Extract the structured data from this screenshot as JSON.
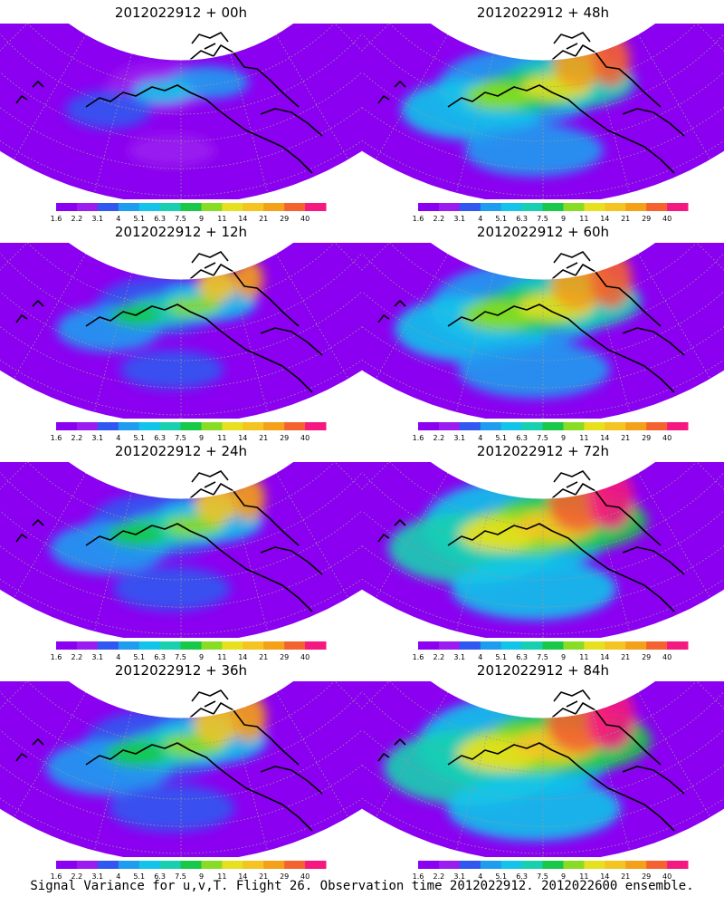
{
  "colorbar": {
    "levels": [
      "1.6",
      "2.2",
      "3.1",
      "4",
      "5.1",
      "6.3",
      "7.5",
      "9",
      "11",
      "14",
      "21",
      "29",
      "40"
    ],
    "colors": [
      "#8b00f0",
      "#9a1cf0",
      "#3058f0",
      "#1e9cf0",
      "#12c4ea",
      "#18d0b0",
      "#18c848",
      "#88dc24",
      "#e6e01e",
      "#f4c420",
      "#f4a018",
      "#f46230",
      "#f41880"
    ]
  },
  "colors": {
    "background_fill": "#8b00f0",
    "land_outline": "#000000",
    "grid_line": "#9a9a9a"
  },
  "panels": [
    {
      "title": "2012022912 + 00h",
      "intensity": 0.0
    },
    {
      "title": "2012022912 + 48h",
      "intensity": 0.6
    },
    {
      "title": "2012022912 + 12h",
      "intensity": 0.2
    },
    {
      "title": "2012022912 + 60h",
      "intensity": 0.75
    },
    {
      "title": "2012022912 + 24h",
      "intensity": 0.35
    },
    {
      "title": "2012022912 + 72h",
      "intensity": 0.9
    },
    {
      "title": "2012022912 + 36h",
      "intensity": 0.45
    },
    {
      "title": "2012022912 + 84h",
      "intensity": 1.0
    }
  ],
  "caption": "Signal Variance for u,v,T. Flight 26. Observation time 2012022912. 2012022600 ensemble."
}
